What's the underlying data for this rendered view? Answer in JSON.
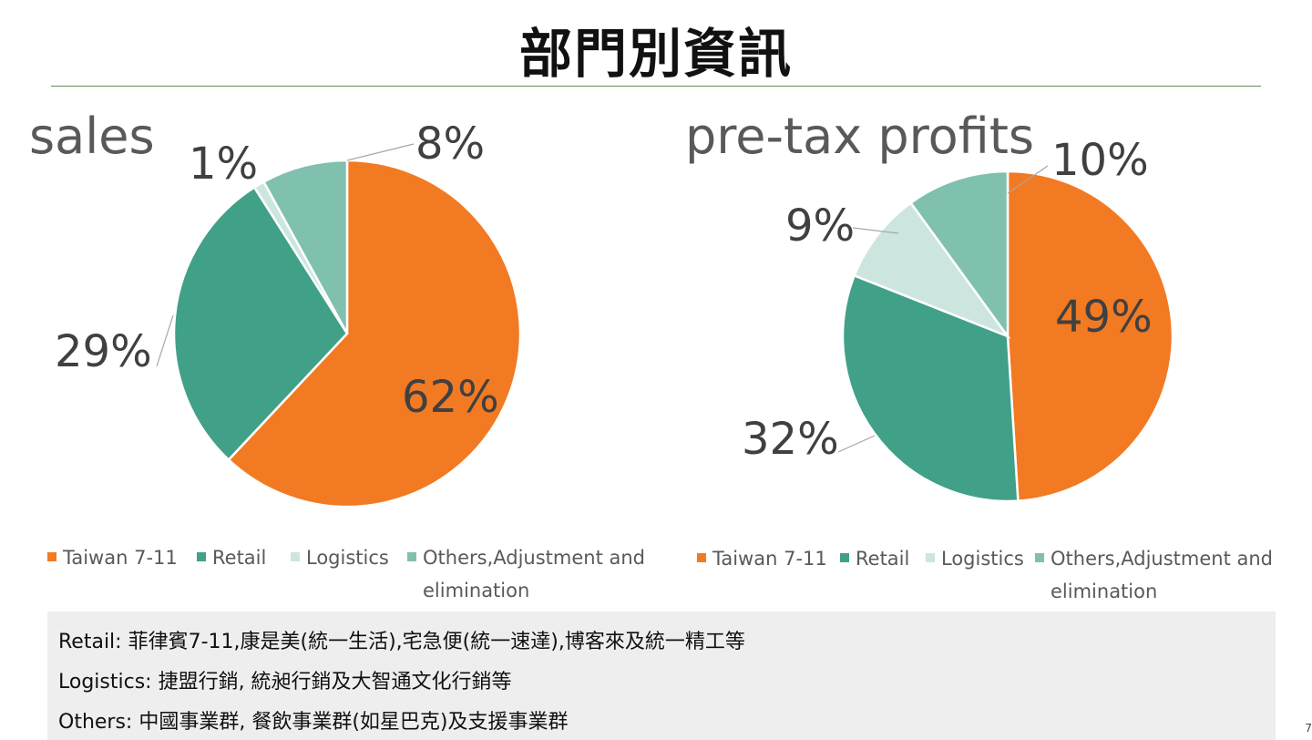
{
  "page": {
    "title": "部門別資訊",
    "page_number": "7"
  },
  "colors": {
    "Taiwan 7-11": "#f27a22",
    "Retail": "#41a088",
    "Logistics": "#cce6df",
    "Others,Adjustment and elimination": "#80c0ae",
    "leader_line": "#a6a6a6",
    "divider": "#6b8e4e"
  },
  "chart_data": [
    {
      "type": "pie",
      "title": "sales",
      "categories": [
        "Taiwan 7-11",
        "Retail",
        "Logistics",
        "Others,Adjustment and elimination"
      ],
      "values": [
        62,
        29,
        1,
        8
      ],
      "data_labels": [
        "62%",
        "29%",
        "1%",
        "8%"
      ],
      "legend": {
        "placement": "bottom",
        "entries": [
          "Taiwan 7-11",
          "Retail",
          "Logistics",
          "Others,Adjustment and",
          "elimination"
        ]
      }
    },
    {
      "type": "pie",
      "title": "pre-tax profits",
      "categories": [
        "Taiwan 7-11",
        "Retail",
        "Logistics",
        "Others,Adjustment and elimination"
      ],
      "values": [
        49,
        32,
        9,
        10
      ],
      "data_labels": [
        "49%",
        "32%",
        "9%",
        "10%"
      ],
      "legend": {
        "placement": "bottom",
        "entries": [
          "Taiwan 7-11",
          "Retail",
          "Logistics",
          "Others,Adjustment and",
          "elimination"
        ]
      }
    }
  ],
  "notes": [
    "Retail: 菲律賓7-11,康是美(統一生活),宅急便(統一速達),博客來及統一精工等",
    "Logistics: 捷盟行銷, 統昶行銷及大智通文化行銷等",
    "Others: 中國事業群, 餐飲事業群(如星巴克)及支援事業群"
  ]
}
